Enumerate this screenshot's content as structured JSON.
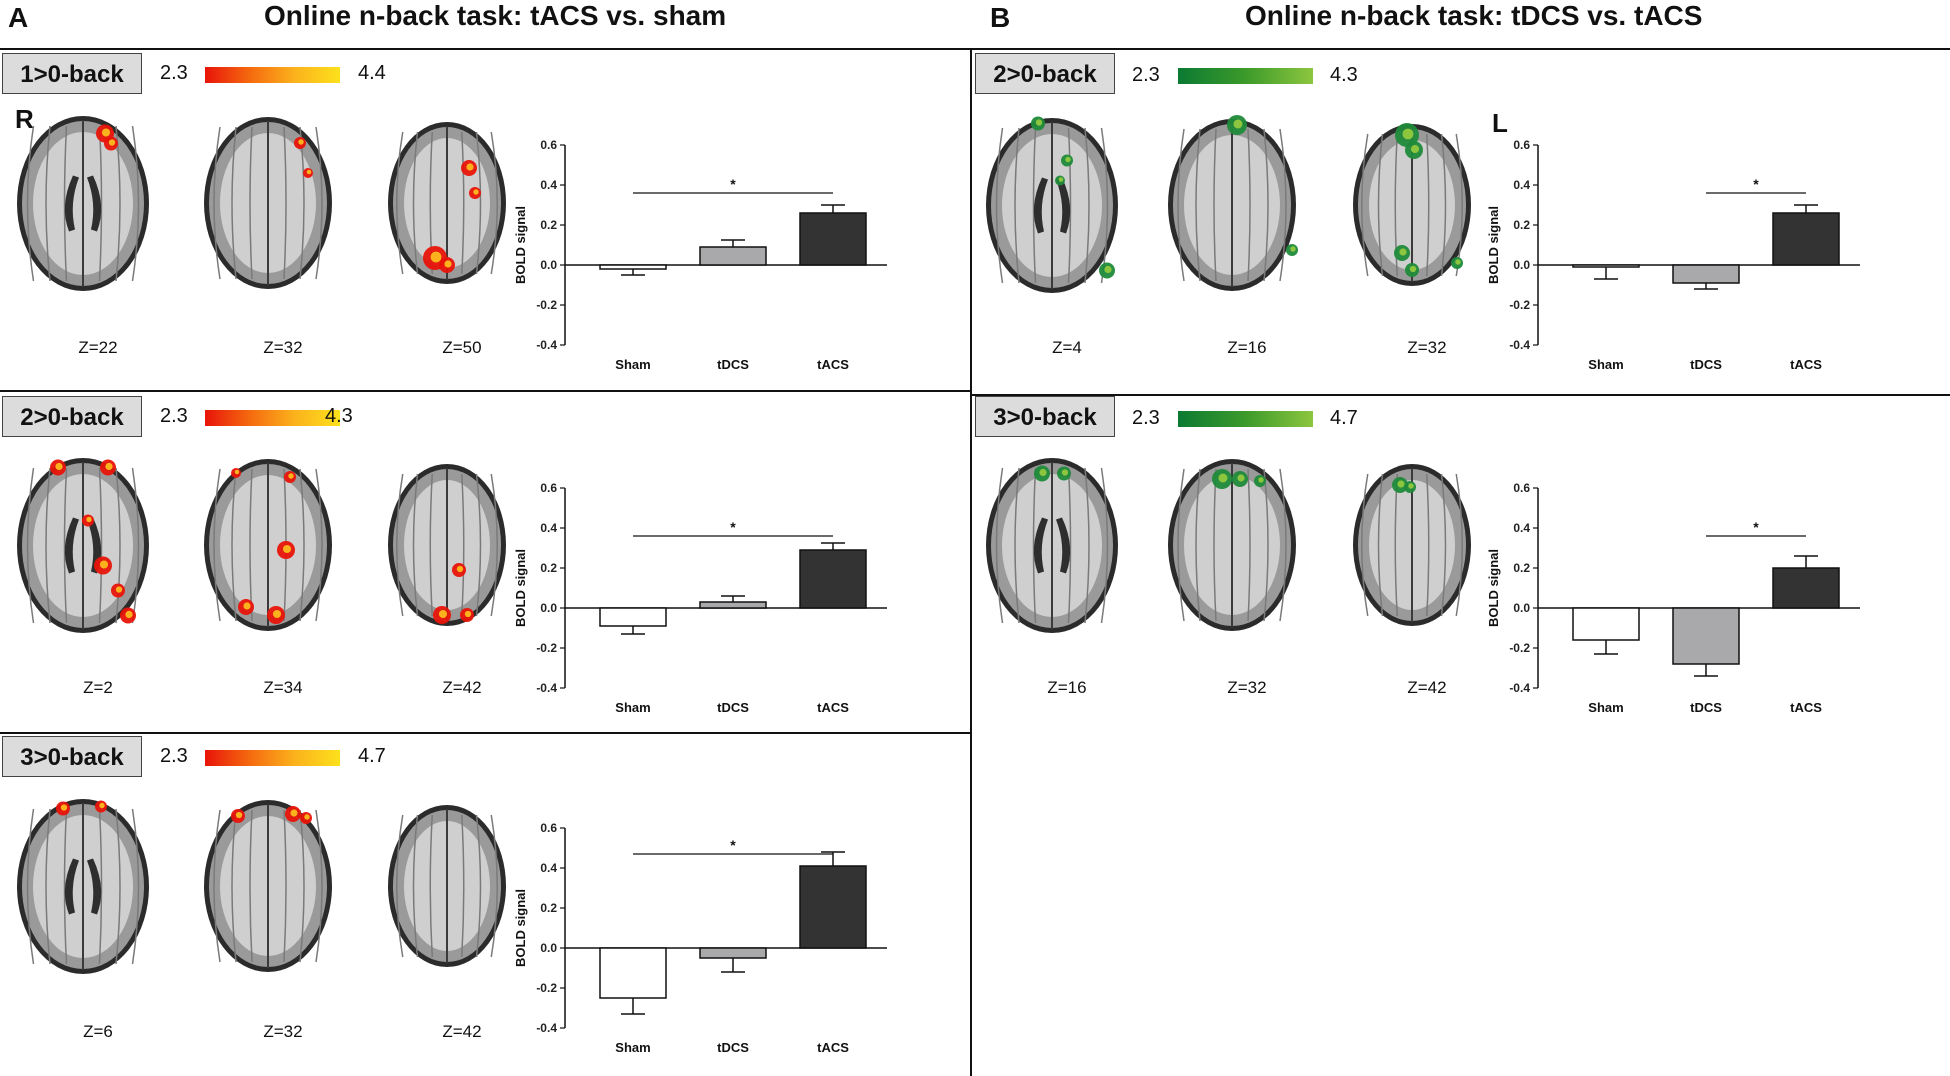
{
  "panel_a": {
    "letter": "A",
    "title": "Online n-back task: tACS vs. sham",
    "side_label": "R",
    "rows": [
      {
        "contrast": "1>0-back",
        "cmin": "2.3",
        "cmax": "4.4",
        "slices": [
          "Z=22",
          "Z=32",
          "Z=50"
        ]
      },
      {
        "contrast": "2>0-back",
        "cmin": "2.3",
        "cmax": "4.3",
        "slices": [
          "Z=2",
          "Z=34",
          "Z=42"
        ]
      },
      {
        "contrast": "3>0-back",
        "cmin": "2.3",
        "cmax": "4.7",
        "slices": [
          "Z=6",
          "Z=32",
          "Z=42"
        ]
      }
    ]
  },
  "panel_b": {
    "letter": "B",
    "title": "Online n-back task: tDCS vs. tACS",
    "side_label": "L",
    "rows": [
      {
        "contrast": "2>0-back",
        "cmin": "2.3",
        "cmax": "4.3",
        "slices": [
          "Z=4",
          "Z=16",
          "Z=32"
        ]
      },
      {
        "contrast": "3>0-back",
        "cmin": "2.3",
        "cmax": "4.7",
        "slices": [
          "Z=16",
          "Z=32",
          "Z=42"
        ]
      }
    ]
  },
  "colors": {
    "hot": "#e8140a",
    "green": "#1f8a3a",
    "sham_bar": "#ffffff",
    "tdcs_bar": "#a9a9ab",
    "tacs_bar": "#333333"
  },
  "chart_data": [
    {
      "type": "bar",
      "categories": [
        "Sham",
        "tDCS",
        "tACS"
      ],
      "values": [
        -0.02,
        0.09,
        0.26
      ],
      "errors": [
        0.03,
        0.035,
        0.04
      ],
      "ylabel": "BOLD signal",
      "ylim": [
        -0.4,
        0.6
      ],
      "ticks": [
        "0.6",
        "0.4",
        "0.2",
        "0.0",
        "-0.2",
        "-0.4"
      ],
      "significance": {
        "from": "Sham",
        "to": "tACS",
        "label": "*"
      }
    },
    {
      "type": "bar",
      "categories": [
        "Sham",
        "tDCS",
        "tACS"
      ],
      "values": [
        -0.09,
        0.03,
        0.29
      ],
      "errors": [
        0.04,
        0.03,
        0.035
      ],
      "ylabel": "BOLD signal",
      "ylim": [
        -0.4,
        0.6
      ],
      "ticks": [
        "0.6",
        "0.4",
        "0.2",
        "0.0",
        "-0.2",
        "-0.4"
      ],
      "significance": {
        "from": "Sham",
        "to": "tACS",
        "label": "*"
      }
    },
    {
      "type": "bar",
      "categories": [
        "Sham",
        "tDCS",
        "tACS"
      ],
      "values": [
        -0.25,
        -0.05,
        0.41
      ],
      "errors": [
        0.08,
        0.07,
        0.07
      ],
      "ylabel": "BOLD signal",
      "ylim": [
        -0.4,
        0.6
      ],
      "ticks": [
        "0.6",
        "0.4",
        "0.2",
        "0.0",
        "-0.2",
        "-0.4"
      ],
      "significance": {
        "from": "Sham",
        "to": "tACS",
        "label": "*"
      }
    },
    {
      "type": "bar",
      "categories": [
        "Sham",
        "tDCS",
        "tACS"
      ],
      "values": [
        -0.01,
        -0.09,
        0.26
      ],
      "errors": [
        0.06,
        0.03,
        0.04
      ],
      "ylabel": "BOLD signal",
      "ylim": [
        -0.4,
        0.6
      ],
      "ticks": [
        "0.6",
        "0.4",
        "0.2",
        "0.0",
        "-0.2",
        "-0.4"
      ],
      "significance": {
        "from": "tDCS",
        "to": "tACS",
        "label": "*"
      }
    },
    {
      "type": "bar",
      "categories": [
        "Sham",
        "tDCS",
        "tACS"
      ],
      "values": [
        -0.16,
        -0.28,
        0.2
      ],
      "errors": [
        0.07,
        0.06,
        0.06
      ],
      "ylabel": "BOLD signal",
      "ylim": [
        -0.4,
        0.6
      ],
      "ticks": [
        "0.6",
        "0.4",
        "0.2",
        "0.0",
        "-0.2",
        "-0.4"
      ],
      "significance": {
        "from": "tDCS",
        "to": "tACS",
        "label": "*"
      }
    }
  ]
}
